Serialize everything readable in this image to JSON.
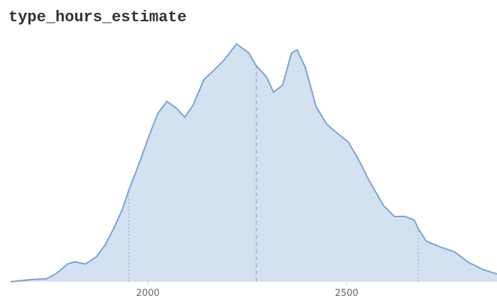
{
  "chart_data": {
    "type": "density",
    "title": "type_hours_estimate",
    "x": [
      1655,
      1709,
      1745,
      1771,
      1798,
      1816,
      1843,
      1870,
      1893,
      1914,
      1936,
      1952,
      1977,
      2004,
      2025,
      2048,
      2071,
      2093,
      2114,
      2141,
      2164,
      2191,
      2223,
      2254,
      2273,
      2298,
      2316,
      2339,
      2361,
      2375,
      2396,
      2423,
      2450,
      2477,
      2504,
      2530,
      2557,
      2593,
      2620,
      2646,
      2670,
      2680,
      2700,
      2736,
      2771,
      2807,
      2843,
      2878
    ],
    "values": [
      0,
      0.009,
      0.012,
      0.035,
      0.073,
      0.082,
      0.073,
      0.102,
      0.152,
      0.219,
      0.298,
      0.377,
      0.482,
      0.605,
      0.693,
      0.743,
      0.716,
      0.678,
      0.728,
      0.833,
      0.868,
      0.912,
      0.98,
      0.942,
      0.889,
      0.845,
      0.781,
      0.81,
      0.942,
      0.956,
      0.883,
      0.722,
      0.649,
      0.611,
      0.576,
      0.503,
      0.415,
      0.313,
      0.269,
      0.269,
      0.254,
      0.219,
      0.167,
      0.143,
      0.123,
      0.079,
      0.05,
      0.032
    ],
    "color": "#7ba3d0",
    "fill": "#d4e1f1",
    "quantiles": [
      1952,
      2273,
      2680
    ],
    "xlim": [
      1655,
      2878
    ],
    "ylim": [
      0,
      1
    ],
    "xticks": [
      2000,
      2500
    ]
  }
}
